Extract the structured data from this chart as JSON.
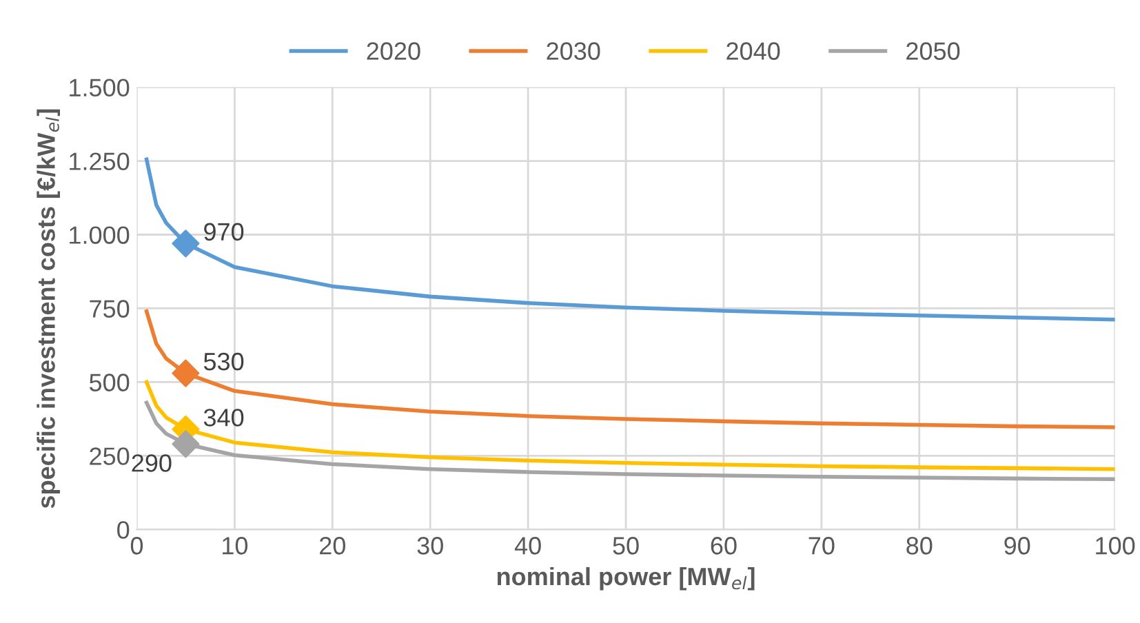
{
  "chart_data": {
    "type": "line",
    "xlabel": "nominal power [MW$_{el}$]",
    "ylabel": "specific investment costs [€/kW$_{el}$]",
    "x": [
      1,
      2,
      3,
      5,
      10,
      20,
      30,
      40,
      50,
      60,
      70,
      80,
      90,
      100
    ],
    "series": [
      {
        "name": "2020",
        "color": "#5b9bd5",
        "values": [
          1255,
          1100,
          1040,
          970,
          890,
          825,
          790,
          768,
          753,
          742,
          733,
          726,
          719,
          712
        ]
      },
      {
        "name": "2030",
        "color": "#ed7d31",
        "values": [
          740,
          630,
          580,
          530,
          470,
          425,
          400,
          385,
          375,
          367,
          360,
          355,
          350,
          347
        ]
      },
      {
        "name": "2040",
        "color": "#ffc000",
        "values": [
          500,
          420,
          380,
          340,
          295,
          262,
          245,
          234,
          226,
          220,
          215,
          211,
          208,
          205
        ]
      },
      {
        "name": "2050",
        "color": "#a5a5a5",
        "values": [
          430,
          360,
          325,
          290,
          252,
          222,
          205,
          195,
          188,
          183,
          179,
          176,
          173,
          171
        ]
      },
      {
        "type": "scatter",
        "marker": "diamond",
        "color": "#5b9bd5",
        "values": [
          null,
          null,
          null,
          970,
          null,
          null,
          null,
          null,
          null,
          null,
          null,
          null,
          null,
          null
        ],
        "value_labels": [
          null,
          null,
          null,
          "970",
          null,
          null,
          null,
          null,
          null,
          null,
          null,
          null,
          null,
          null
        ]
      },
      {
        "type": "scatter",
        "marker": "diamond",
        "color": "#ed7d31",
        "values": [
          null,
          null,
          null,
          530,
          null,
          null,
          null,
          null,
          null,
          null,
          null,
          null,
          null,
          null
        ],
        "value_labels": [
          null,
          null,
          null,
          "530",
          null,
          null,
          null,
          null,
          null,
          null,
          null,
          null,
          null,
          null
        ]
      },
      {
        "type": "scatter",
        "marker": "diamond",
        "color": "#ffc000",
        "values": [
          null,
          null,
          null,
          340,
          null,
          null,
          null,
          null,
          null,
          null,
          null,
          null,
          null,
          null
        ],
        "value_labels": [
          null,
          null,
          null,
          "340",
          null,
          null,
          null,
          null,
          null,
          null,
          null,
          null,
          null,
          null
        ]
      },
      {
        "type": "scatter",
        "marker": "diamond",
        "color": "#a5a5a5",
        "values": [
          null,
          null,
          null,
          290,
          null,
          null,
          null,
          null,
          null,
          null,
          null,
          null,
          null,
          null
        ],
        "value_labels": [
          null,
          null,
          null,
          "290",
          null,
          null,
          null,
          null,
          null,
          null,
          null,
          null,
          null,
          null
        ]
      }
    ],
    "xlim": [
      0,
      100
    ],
    "xticks": [
      0,
      10,
      20,
      30,
      40,
      50,
      60,
      70,
      80,
      90,
      100
    ],
    "ylim": [
      0,
      1500
    ],
    "yticks": [
      0,
      250,
      500,
      750,
      {
        "value": 1000,
        "label": "1.000"
      },
      {
        "value": 1250,
        "label": "1.250"
      },
      {
        "value": 1500,
        "label": "1.500"
      }
    ],
    "grid": true,
    "legend": "top"
  }
}
